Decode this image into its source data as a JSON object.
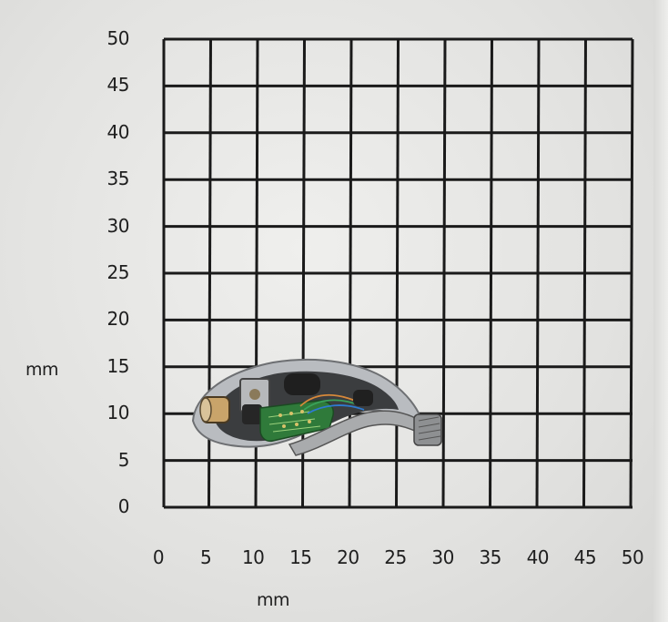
{
  "y_axis": {
    "unit_label": "mm",
    "tick_labels": [
      "50",
      "45",
      "40",
      "35",
      "30",
      "25",
      "20",
      "15",
      "10",
      "5",
      "0"
    ]
  },
  "x_axis": {
    "unit_label": "mm",
    "tick_labels": [
      "0",
      "5",
      "10",
      "15",
      "20",
      "25",
      "30",
      "35",
      "40",
      "45",
      "50"
    ]
  },
  "colors": {
    "paper": "#e4e4e2",
    "grid_line": "#1a1a1a",
    "device_metal": "#9a9c9e",
    "circuit_board": "#2f7a3a"
  },
  "object": {
    "icon": "hearing-device-cross-section-photo"
  }
}
